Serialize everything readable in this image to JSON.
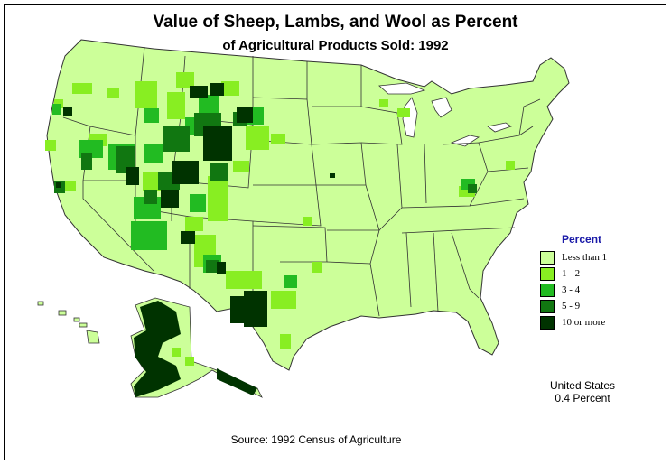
{
  "title": "Value of Sheep, Lambs, and Wool as Percent",
  "subtitle": "of Agricultural Products Sold:  1992",
  "legend": {
    "title": "Percent",
    "items": [
      {
        "label": "Less than 1",
        "color": "#ccff99"
      },
      {
        "label": "1  -  2",
        "color": "#88ee22"
      },
      {
        "label": "3  -  4",
        "color": "#22bb22"
      },
      {
        "label": "5  -  9",
        "color": "#117711"
      },
      {
        "label": "10 or more",
        "color": "#003300"
      }
    ]
  },
  "us_summary": {
    "line1": "United States",
    "line2": "0.4 Percent"
  },
  "source": "Source:  1992 Census of Agriculture",
  "colors": {
    "base": "#ccff99",
    "border": "#333333",
    "water": "#ffffff"
  }
}
